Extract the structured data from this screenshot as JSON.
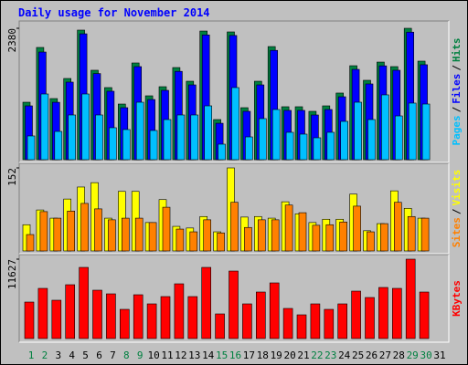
{
  "legend_separator": "/",
  "chart_data": [
    {
      "type": "bar",
      "title": "Daily usage for November 2014",
      "ylim": [
        0,
        2380
      ],
      "yticks": [
        2380
      ],
      "series": [
        {
          "name": "Hits",
          "color": "#008040",
          "values": [
            1041,
            2033,
            1107,
            1471,
            2347,
            1620,
            1306,
            1008,
            1752,
            1157,
            1322,
            1669,
            1421,
            2330,
            727,
            2314,
            942,
            1421,
            2049,
            959,
            959,
            876,
            975,
            1207,
            1702,
            1438,
            1768,
            1686,
            2380,
            1785,
            null
          ]
        },
        {
          "name": "Files",
          "color": "#0000ff",
          "values": [
            975,
            1950,
            1040,
            1405,
            2280,
            1560,
            1240,
            942,
            1686,
            1090,
            1256,
            1600,
            1355,
            2260,
            660,
            2250,
            876,
            1355,
            1980,
            893,
            893,
            810,
            909,
            1140,
            1636,
            1372,
            1700,
            1620,
            2310,
            1720,
            null
          ]
        },
        {
          "name": "Pages",
          "color": "#00c0ff",
          "values": [
            430,
            1190,
            512,
            810,
            1190,
            810,
            579,
            546,
            1041,
            529,
            727,
            810,
            810,
            975,
            281,
            1306,
            413,
            744,
            909,
            496,
            463,
            397,
            496,
            694,
            1041,
            727,
            1174,
            793,
            1025,
            1008,
            null
          ]
        }
      ]
    },
    {
      "type": "bar",
      "ylim": [
        0,
        152
      ],
      "yticks": [
        152
      ],
      "series": [
        {
          "name": "Visits",
          "color": "#ffff00",
          "values": [
            48,
            75,
            60,
            95,
            117,
            125,
            60,
            109,
            109,
            52,
            94,
            45,
            42,
            63,
            35,
            152,
            62,
            63,
            60,
            90,
            68,
            52,
            58,
            58,
            104,
            37,
            50,
            110,
            78,
            60,
            null
          ]
        },
        {
          "name": "Sites",
          "color": "#ff8000",
          "values": [
            30,
            72,
            60,
            73,
            87,
            77,
            57,
            60,
            60,
            52,
            80,
            40,
            35,
            57,
            33,
            89,
            43,
            57,
            57,
            84,
            70,
            47,
            48,
            53,
            82,
            35,
            50,
            89,
            63,
            60,
            null
          ]
        }
      ]
    },
    {
      "type": "bar",
      "ylim": [
        0,
        11627
      ],
      "yticks": [
        11627
      ],
      "categories": [
        "1",
        "2",
        "3",
        "4",
        "5",
        "6",
        "7",
        "8",
        "9",
        "10",
        "11",
        "12",
        "13",
        "14",
        "15",
        "16",
        "17",
        "18",
        "19",
        "20",
        "21",
        "22",
        "23",
        "24",
        "25",
        "26",
        "27",
        "28",
        "29",
        "30",
        "31"
      ],
      "category_colors": [
        "#008040",
        "#008040",
        "#000000",
        "#000000",
        "#000000",
        "#000000",
        "#000000",
        "#008040",
        "#008040",
        "#000000",
        "#000000",
        "#000000",
        "#000000",
        "#000000",
        "#008040",
        "#008040",
        "#000000",
        "#000000",
        "#000000",
        "#000000",
        "#000000",
        "#008040",
        "#008040",
        "#000000",
        "#000000",
        "#000000",
        "#000000",
        "#000000",
        "#008040",
        "#008040",
        "#000000"
      ],
      "series": [
        {
          "name": "KBytes",
          "color": "#ff0000",
          "values": [
            5344,
            7348,
            5611,
            7882,
            10421,
            7081,
            6546,
            4275,
            6413,
            5077,
            6146,
            8016,
            6146,
            10421,
            3607,
            9886,
            5077,
            6814,
            8150,
            4409,
            3474,
            5077,
            4275,
            5077,
            6947,
            6012,
            7482,
            7348,
            11627,
            6814,
            null
          ]
        }
      ]
    }
  ]
}
